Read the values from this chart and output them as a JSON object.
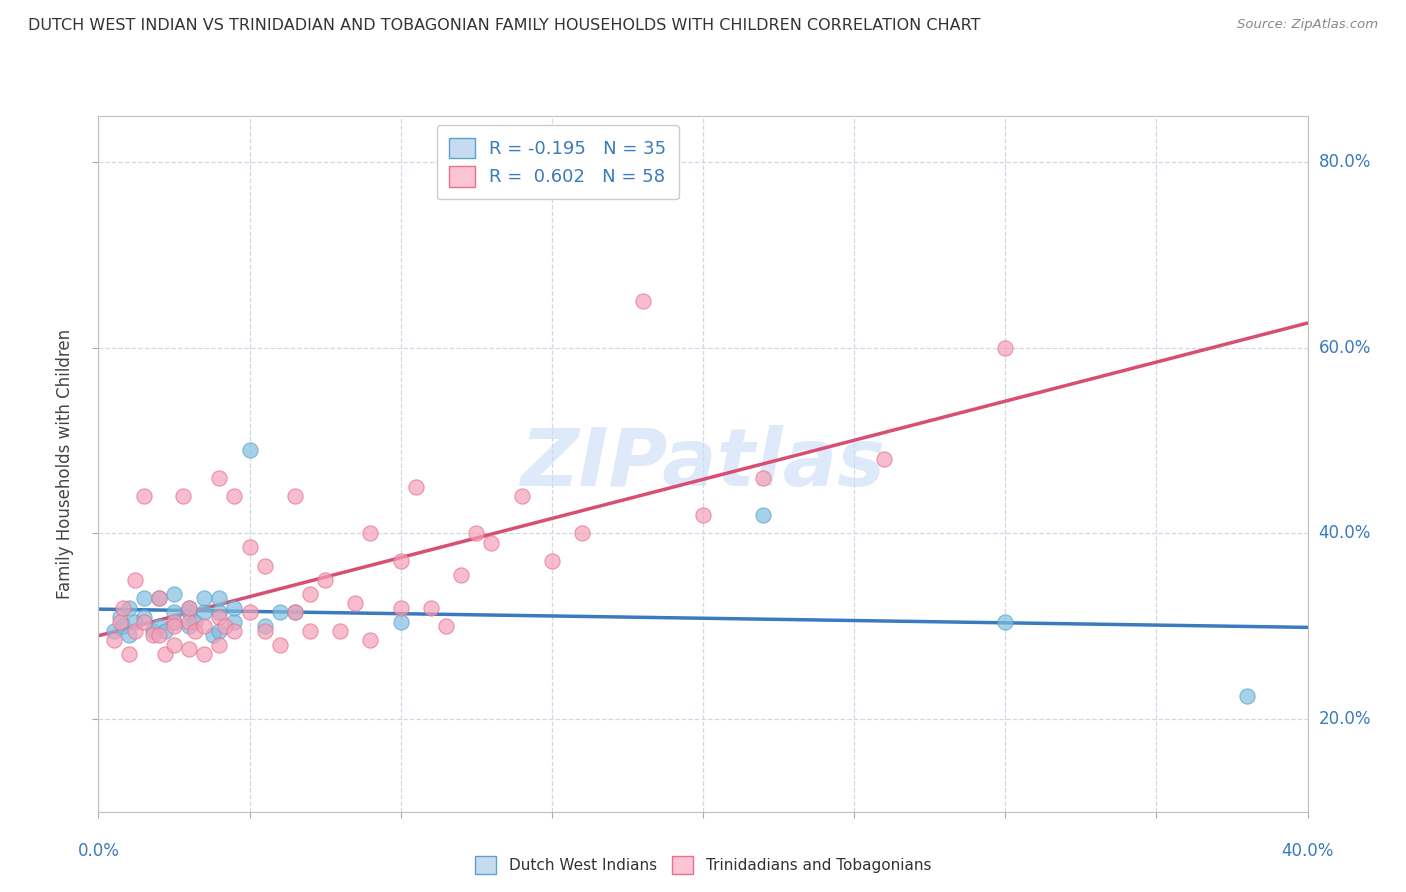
{
  "title": "DUTCH WEST INDIAN VS TRINIDADIAN AND TOBAGONIAN FAMILY HOUSEHOLDS WITH CHILDREN CORRELATION CHART",
  "source": "Source: ZipAtlas.com",
  "ylabel": "Family Households with Children",
  "watermark": "ZIPatlas",
  "legend_blue_label": "R = -0.195   N = 35",
  "legend_pink_label": "R =  0.602   N = 58",
  "blue_R": -0.195,
  "pink_R": 0.602,
  "blue_color": "#7fbfdf",
  "pink_color": "#f4a0b8",
  "blue_edge": "#5ba3cc",
  "pink_edge": "#e8708e",
  "blue_fill_legend": "#c6dbef",
  "pink_fill_legend": "#fcc5d5",
  "trend_blue_color": "#3a7abf",
  "trend_pink_color": "#d94f72",
  "blue_scatter_x": [
    0.005,
    0.007,
    0.008,
    0.01,
    0.01,
    0.012,
    0.015,
    0.015,
    0.018,
    0.02,
    0.02,
    0.022,
    0.025,
    0.025,
    0.025,
    0.03,
    0.03,
    0.03,
    0.032,
    0.035,
    0.035,
    0.038,
    0.04,
    0.04,
    0.04,
    0.045,
    0.045,
    0.05,
    0.055,
    0.06,
    0.065,
    0.1,
    0.22,
    0.3,
    0.38
  ],
  "blue_scatter_y": [
    0.295,
    0.31,
    0.3,
    0.29,
    0.32,
    0.305,
    0.31,
    0.33,
    0.295,
    0.3,
    0.33,
    0.295,
    0.305,
    0.315,
    0.335,
    0.3,
    0.315,
    0.32,
    0.305,
    0.315,
    0.33,
    0.29,
    0.295,
    0.315,
    0.33,
    0.305,
    0.32,
    0.49,
    0.3,
    0.315,
    0.315,
    0.305,
    0.42,
    0.305,
    0.225
  ],
  "pink_scatter_x": [
    0.005,
    0.007,
    0.008,
    0.01,
    0.012,
    0.012,
    0.015,
    0.015,
    0.018,
    0.02,
    0.02,
    0.022,
    0.025,
    0.025,
    0.025,
    0.028,
    0.03,
    0.03,
    0.03,
    0.032,
    0.035,
    0.035,
    0.04,
    0.04,
    0.04,
    0.042,
    0.045,
    0.045,
    0.05,
    0.05,
    0.055,
    0.055,
    0.06,
    0.065,
    0.065,
    0.07,
    0.07,
    0.075,
    0.08,
    0.085,
    0.09,
    0.09,
    0.1,
    0.1,
    0.105,
    0.11,
    0.115,
    0.12,
    0.125,
    0.13,
    0.14,
    0.15,
    0.16,
    0.18,
    0.2,
    0.22,
    0.26,
    0.3
  ],
  "pink_scatter_y": [
    0.285,
    0.305,
    0.32,
    0.27,
    0.35,
    0.295,
    0.305,
    0.44,
    0.29,
    0.29,
    0.33,
    0.27,
    0.28,
    0.305,
    0.3,
    0.44,
    0.275,
    0.305,
    0.32,
    0.295,
    0.3,
    0.27,
    0.28,
    0.31,
    0.46,
    0.3,
    0.295,
    0.44,
    0.315,
    0.385,
    0.295,
    0.365,
    0.28,
    0.315,
    0.44,
    0.295,
    0.335,
    0.35,
    0.295,
    0.325,
    0.285,
    0.4,
    0.32,
    0.37,
    0.45,
    0.32,
    0.3,
    0.355,
    0.4,
    0.39,
    0.44,
    0.37,
    0.4,
    0.65,
    0.42,
    0.46,
    0.48,
    0.6
  ],
  "xlim": [
    0.0,
    0.4
  ],
  "ylim": [
    0.1,
    0.85
  ],
  "ytick_right": [
    0.2,
    0.4,
    0.6,
    0.8
  ],
  "ytick_right_labels": [
    "20.0%",
    "40.0%",
    "60.0%",
    "80.0%"
  ],
  "background_color": "#ffffff",
  "grid_color": "#d0d8e8"
}
